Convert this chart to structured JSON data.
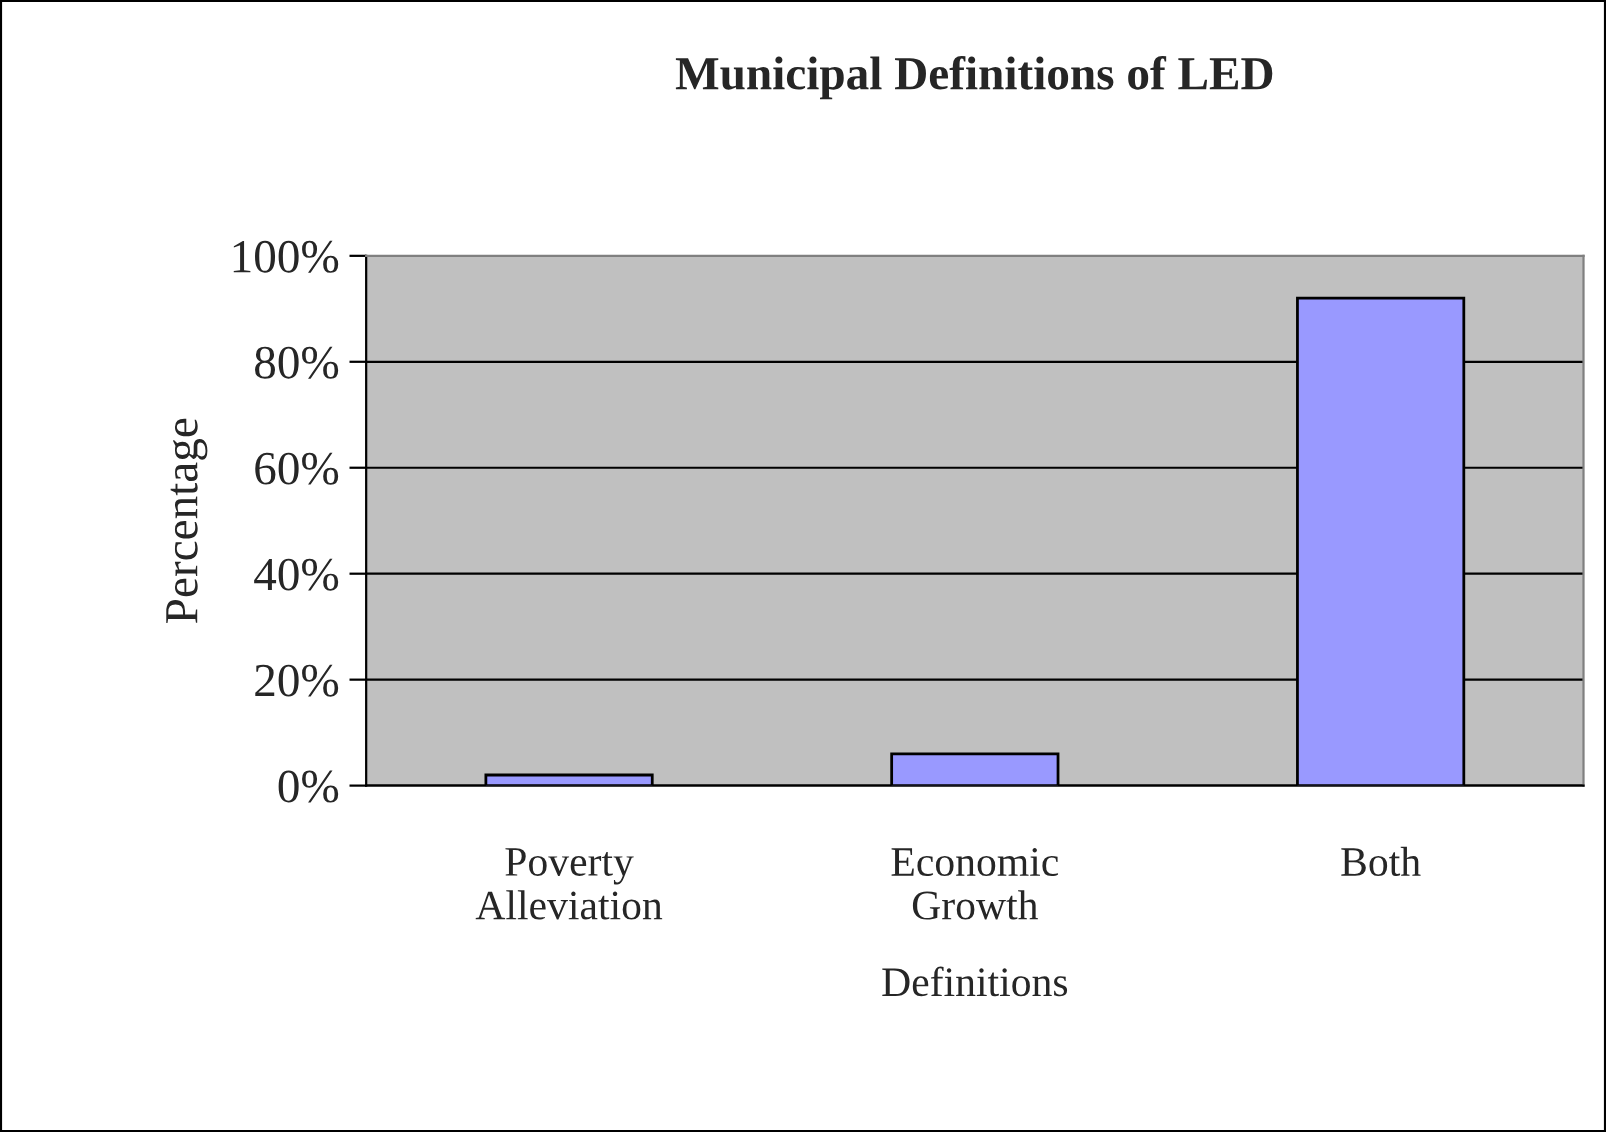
{
  "chart_data": {
    "type": "bar",
    "title": "Municipal Definitions of LED",
    "xlabel": "Definitions",
    "ylabel": "Percentage",
    "categories": [
      "Poverty\nAlleviation",
      "Economic\nGrowth",
      "Both"
    ],
    "values": [
      2,
      6,
      92
    ],
    "color": "#9999ff",
    "ylim": [
      0,
      100
    ],
    "yticks": [
      {
        "value": 0,
        "label": "0%"
      },
      {
        "value": 20,
        "label": "20%"
      },
      {
        "value": 40,
        "label": "40%"
      },
      {
        "value": 60,
        "label": "60%"
      },
      {
        "value": 80,
        "label": "80%"
      },
      {
        "value": 100,
        "label": "100%"
      }
    ],
    "grid": "y",
    "legend": false
  }
}
